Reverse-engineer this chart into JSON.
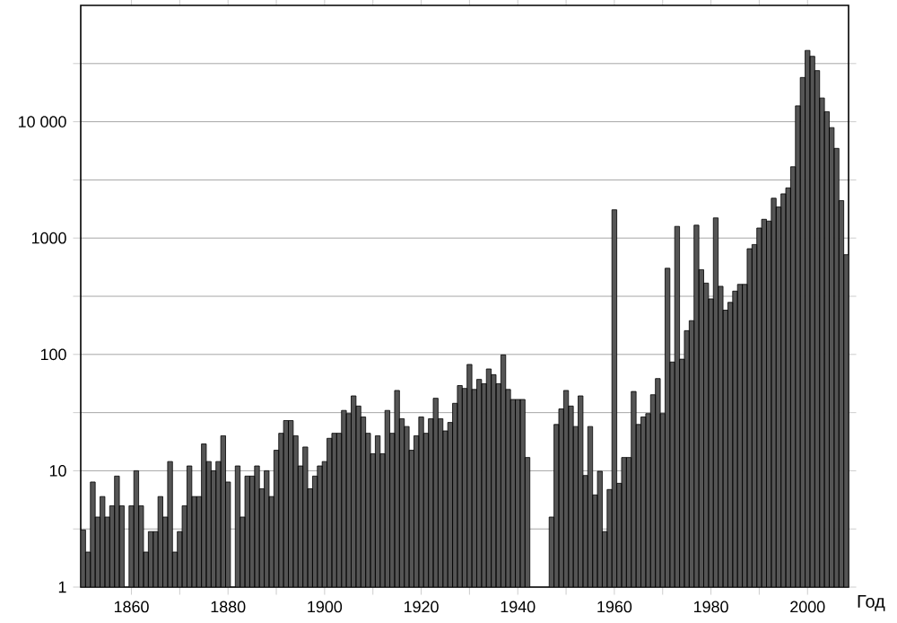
{
  "chart_data": {
    "type": "bar",
    "xlabel": "Год",
    "color": "#555555",
    "log": "y",
    "grid": "y",
    "x": [
      1850,
      1851,
      1852,
      1853,
      1854,
      1855,
      1856,
      1857,
      1858,
      1859,
      1860,
      1861,
      1862,
      1863,
      1864,
      1865,
      1866,
      1867,
      1868,
      1869,
      1870,
      1871,
      1872,
      1873,
      1874,
      1875,
      1876,
      1877,
      1878,
      1879,
      1880,
      1881,
      1882,
      1883,
      1884,
      1885,
      1886,
      1887,
      1888,
      1889,
      1890,
      1891,
      1892,
      1893,
      1894,
      1895,
      1896,
      1897,
      1898,
      1899,
      1900,
      1901,
      1902,
      1903,
      1904,
      1905,
      1906,
      1907,
      1908,
      1909,
      1910,
      1911,
      1912,
      1913,
      1914,
      1915,
      1916,
      1917,
      1918,
      1919,
      1920,
      1921,
      1922,
      1923,
      1924,
      1925,
      1926,
      1927,
      1928,
      1929,
      1930,
      1931,
      1932,
      1933,
      1934,
      1935,
      1936,
      1937,
      1938,
      1939,
      1940,
      1941,
      1942,
      1943,
      1944,
      1945,
      1946,
      1947,
      1948,
      1949,
      1950,
      1951,
      1952,
      1953,
      1954,
      1955,
      1956,
      1957,
      1958,
      1959,
      1960,
      1961,
      1962,
      1963,
      1964,
      1965,
      1966,
      1967,
      1968,
      1969,
      1970,
      1971,
      1972,
      1973,
      1974,
      1975,
      1976,
      1977,
      1978,
      1979,
      1980,
      1981,
      1982,
      1983,
      1984,
      1985,
      1986,
      1987,
      1988,
      1989,
      1990,
      1991,
      1992,
      1993,
      1994,
      1995,
      1996,
      1997,
      1998,
      1999,
      2000,
      2001,
      2002,
      2003,
      2004,
      2005,
      2006,
      2007,
      2008
    ],
    "values": [
      3.1,
      2,
      8,
      4,
      6,
      4,
      5,
      9,
      5,
      null,
      5,
      10,
      5,
      2,
      3,
      3,
      6,
      4,
      12,
      2,
      3,
      5,
      11,
      6,
      6,
      17,
      12,
      10,
      12,
      20,
      8,
      null,
      11,
      4,
      9,
      9,
      11,
      7,
      10,
      6,
      15,
      21,
      27,
      27,
      20,
      11,
      16,
      7,
      9,
      11,
      12,
      19,
      21,
      21,
      33,
      31,
      44,
      36,
      29,
      21,
      14,
      20,
      14,
      33,
      21,
      49,
      28,
      24,
      15,
      20,
      29,
      21,
      28,
      42,
      28,
      22,
      26,
      38,
      54,
      51,
      82,
      50,
      61,
      56,
      75,
      67,
      56,
      99,
      50,
      41,
      41,
      41,
      13,
      null,
      null,
      null,
      null,
      4,
      25,
      34,
      49,
      36,
      24,
      44,
      9.1,
      24,
      6.2,
      9.9,
      3,
      6.9,
      1750,
      7.8,
      13,
      13,
      48,
      25,
      29,
      31,
      45,
      62,
      31,
      550,
      86,
      1260,
      91,
      160,
      195,
      1290,
      535,
      410,
      300,
      1490,
      385,
      240,
      280,
      350,
      400,
      400,
      810,
      880,
      1220,
      1450,
      1400,
      2200,
      1850,
      2400,
      2700,
      4100,
      13700,
      24000,
      41000,
      36500,
      27500,
      16000,
      12200,
      8900,
      5900,
      2100,
      720
    ],
    "xlim": [
      1849.5,
      2008.5
    ],
    "xticks": [
      1860,
      {
        "value": 1870,
        "label": null
      },
      1880,
      {
        "value": 1890,
        "label": null
      },
      1900,
      {
        "value": 1910,
        "label": null
      },
      1920,
      {
        "value": 1930,
        "label": null
      },
      1940,
      {
        "value": 1950,
        "label": null
      },
      1960,
      {
        "value": 1970,
        "label": null
      },
      1980,
      {
        "value": 1990,
        "label": null
      },
      2000
    ],
    "ylim": [
      1,
      100000
    ],
    "yticks": [
      1,
      {
        "value": 3.16,
        "label": null
      },
      10,
      {
        "value": 31.6,
        "label": null
      },
      100,
      {
        "value": 316,
        "label": null
      },
      1000,
      {
        "value": 3162,
        "label": null
      },
      {
        "value": 10000,
        "label": "10 000"
      },
      {
        "value": 31623,
        "label": null
      }
    ]
  }
}
